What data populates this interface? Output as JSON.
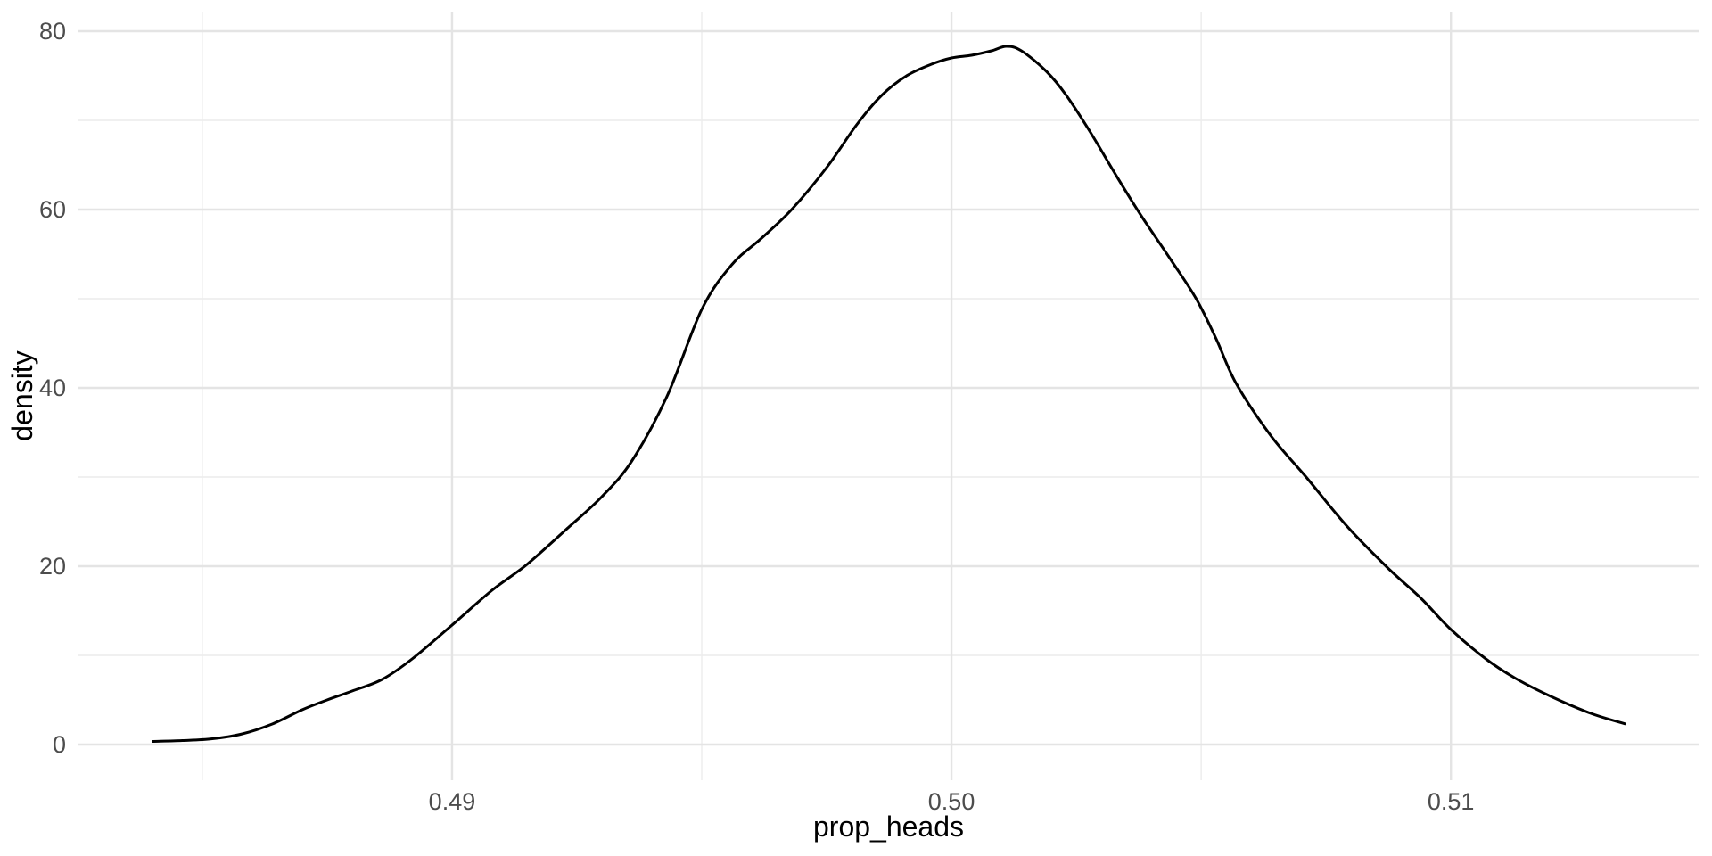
{
  "page": {
    "background": "#ffffff",
    "description": "Kernel density plot of simulated coin-flip proportions"
  },
  "style": {
    "background": "#ffffff",
    "grid_major_color": "#e4e4e4",
    "grid_minor_color": "#ececec",
    "grid_major_width": 2.4,
    "grid_minor_width": 1.4,
    "tick_label_color": "#4d4d4d",
    "axis_title_color": "#000000",
    "line_color": "#000000",
    "line_width": 3
  },
  "chart_data": {
    "type": "line",
    "title": "",
    "xlabel": "prop_heads",
    "ylabel": "density",
    "xlim": [
      0.48252,
      0.51496
    ],
    "ylim": [
      -4,
      82.2
    ],
    "grid": {
      "major": true,
      "minor": true
    },
    "legend": "none",
    "x_ticks": {
      "major": [
        0.49,
        0.5,
        0.51
      ],
      "labels": [
        "0.49",
        "0.50",
        "0.51"
      ],
      "minor": [
        0.485,
        0.495,
        0.505,
        0.515
      ]
    },
    "y_ticks": {
      "major": [
        0,
        20,
        40,
        60,
        80
      ],
      "labels": [
        "0",
        "20",
        "40",
        "60",
        "80"
      ],
      "minor": [
        10,
        30,
        50,
        70
      ]
    },
    "series": [
      {
        "name": "density_curve",
        "color": "#000000",
        "points": [
          [
            0.484,
            0.35
          ],
          [
            0.4846,
            0.45
          ],
          [
            0.4852,
            0.65
          ],
          [
            0.4858,
            1.2
          ],
          [
            0.4864,
            2.3
          ],
          [
            0.487,
            3.9
          ],
          [
            0.4875,
            5.0
          ],
          [
            0.488,
            6.0
          ],
          [
            0.4886,
            7.3
          ],
          [
            0.4892,
            9.6
          ],
          [
            0.49,
            13.4
          ],
          [
            0.4908,
            17.3
          ],
          [
            0.4915,
            20.2
          ],
          [
            0.4923,
            24.2
          ],
          [
            0.493,
            27.8
          ],
          [
            0.4936,
            31.8
          ],
          [
            0.4943,
            39.0
          ],
          [
            0.495,
            48.8
          ],
          [
            0.4956,
            53.8
          ],
          [
            0.4962,
            56.8
          ],
          [
            0.4968,
            60.0
          ],
          [
            0.4975,
            64.7
          ],
          [
            0.4981,
            69.5
          ],
          [
            0.4986,
            72.8
          ],
          [
            0.4991,
            75.0
          ],
          [
            0.4996,
            76.3
          ],
          [
            0.5,
            77.0
          ],
          [
            0.5004,
            77.3
          ],
          [
            0.5008,
            77.8
          ],
          [
            0.5011,
            78.3
          ],
          [
            0.5014,
            77.8
          ],
          [
            0.5019,
            75.5
          ],
          [
            0.5023,
            72.8
          ],
          [
            0.5028,
            68.5
          ],
          [
            0.5033,
            63.8
          ],
          [
            0.5038,
            59.3
          ],
          [
            0.5044,
            54.3
          ],
          [
            0.5049,
            50.0
          ],
          [
            0.5053,
            45.5
          ],
          [
            0.5057,
            40.5
          ],
          [
            0.5064,
            34.6
          ],
          [
            0.5071,
            30.0
          ],
          [
            0.5079,
            24.6
          ],
          [
            0.5087,
            20.0
          ],
          [
            0.5094,
            16.4
          ],
          [
            0.51,
            12.9
          ],
          [
            0.5107,
            9.6
          ],
          [
            0.5113,
            7.4
          ],
          [
            0.512,
            5.4
          ],
          [
            0.5128,
            3.5
          ],
          [
            0.5135,
            2.3
          ]
        ]
      }
    ]
  }
}
